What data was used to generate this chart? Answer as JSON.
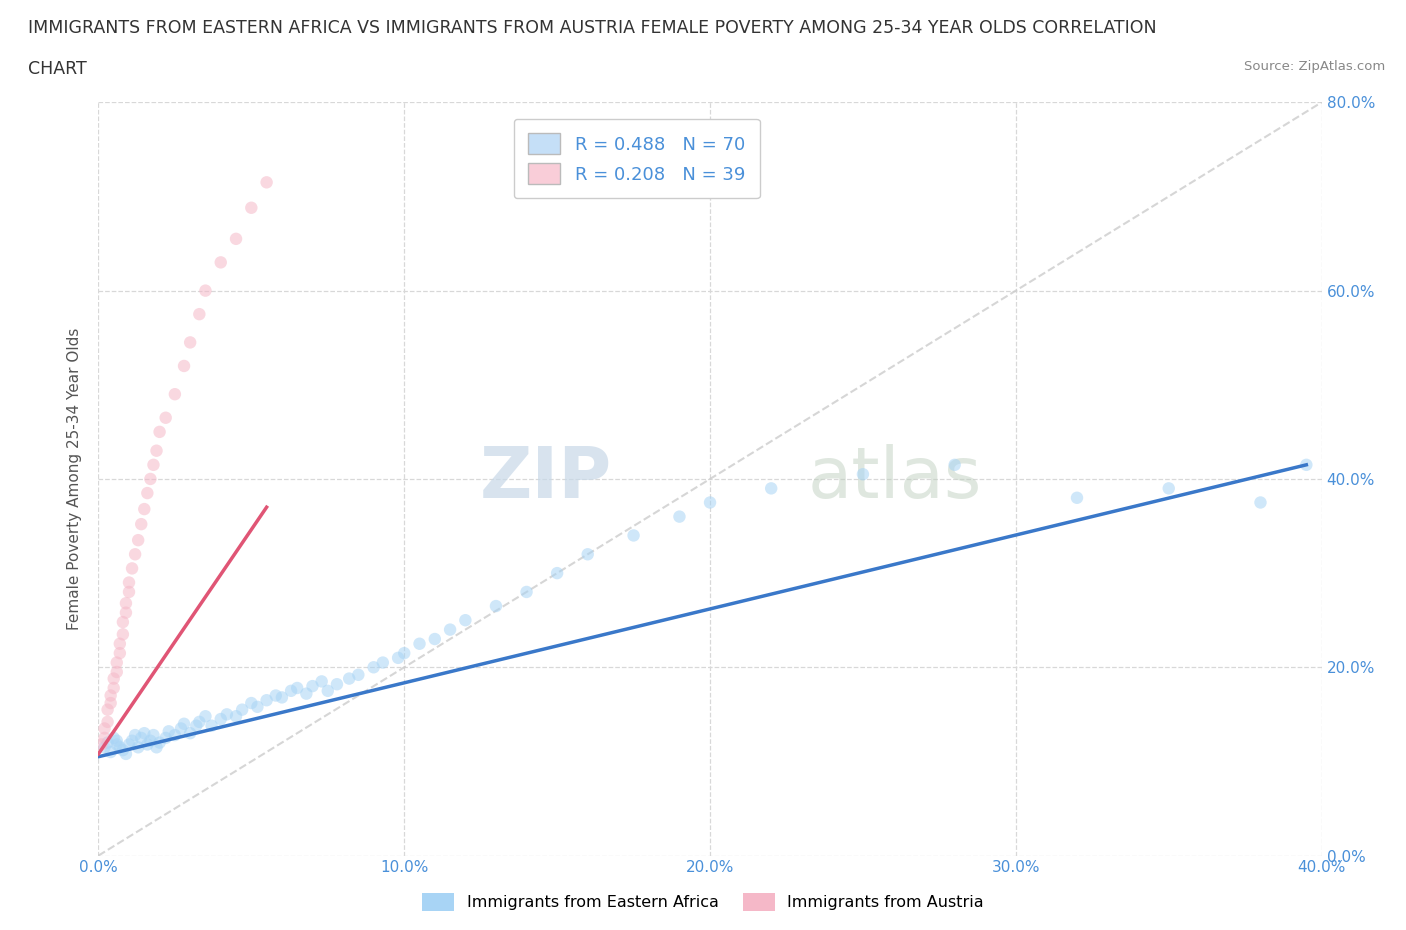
{
  "title_line1": "IMMIGRANTS FROM EASTERN AFRICA VS IMMIGRANTS FROM AUSTRIA FEMALE POVERTY AMONG 25-34 YEAR OLDS CORRELATION",
  "title_line2": "CHART",
  "source": "Source: ZipAtlas.com",
  "ylabel": "Female Poverty Among 25-34 Year Olds",
  "xlim": [
    0.0,
    0.4
  ],
  "ylim": [
    0.0,
    0.8
  ],
  "xticks": [
    0.0,
    0.1,
    0.2,
    0.3,
    0.4
  ],
  "yticks": [
    0.0,
    0.2,
    0.4,
    0.6,
    0.8
  ],
  "xtick_labels": [
    "0.0%",
    "10.0%",
    "20.0%",
    "30.0%",
    "40.0%"
  ],
  "ytick_labels": [
    "0.0%",
    "20.0%",
    "40.0%",
    "60.0%",
    "80.0%"
  ],
  "watermark_zip": "ZIP",
  "watermark_atlas": "atlas",
  "R_eastern": 0.488,
  "N_eastern": 70,
  "R_austria": 0.208,
  "N_austria": 39,
  "eastern_africa_color": "#a8d4f5",
  "austria_color": "#f5b8c8",
  "eastern_africa_line_color": "#3a78c9",
  "austria_line_color": "#e05575",
  "legend_blue_fill": "#c5dff7",
  "legend_pink_fill": "#f9cdd8",
  "background_color": "#ffffff",
  "grid_color": "#d8d8d8",
  "title_fontsize": 12.5,
  "axis_label_fontsize": 11,
  "tick_fontsize": 11,
  "marker_size": 80,
  "marker_alpha": 0.55,
  "blue_tick_color": "#4a90d9",
  "ref_line_color": "#cccccc",
  "ea_x": [
    0.002,
    0.003,
    0.004,
    0.005,
    0.006,
    0.006,
    0.007,
    0.008,
    0.009,
    0.01,
    0.011,
    0.012,
    0.013,
    0.014,
    0.015,
    0.016,
    0.017,
    0.018,
    0.019,
    0.02,
    0.022,
    0.023,
    0.025,
    0.027,
    0.028,
    0.03,
    0.032,
    0.033,
    0.035,
    0.037,
    0.04,
    0.042,
    0.045,
    0.047,
    0.05,
    0.052,
    0.055,
    0.058,
    0.06,
    0.063,
    0.065,
    0.068,
    0.07,
    0.073,
    0.075,
    0.078,
    0.082,
    0.085,
    0.09,
    0.093,
    0.098,
    0.1,
    0.105,
    0.11,
    0.115,
    0.12,
    0.13,
    0.14,
    0.15,
    0.16,
    0.175,
    0.19,
    0.2,
    0.22,
    0.25,
    0.28,
    0.32,
    0.35,
    0.38,
    0.395
  ],
  "ea_y": [
    0.115,
    0.12,
    0.11,
    0.125,
    0.118,
    0.122,
    0.115,
    0.112,
    0.108,
    0.118,
    0.122,
    0.128,
    0.115,
    0.125,
    0.13,
    0.118,
    0.122,
    0.128,
    0.115,
    0.12,
    0.125,
    0.132,
    0.128,
    0.135,
    0.14,
    0.13,
    0.138,
    0.142,
    0.148,
    0.138,
    0.145,
    0.15,
    0.148,
    0.155,
    0.162,
    0.158,
    0.165,
    0.17,
    0.168,
    0.175,
    0.178,
    0.172,
    0.18,
    0.185,
    0.175,
    0.182,
    0.188,
    0.192,
    0.2,
    0.205,
    0.21,
    0.215,
    0.225,
    0.23,
    0.24,
    0.25,
    0.265,
    0.28,
    0.3,
    0.32,
    0.34,
    0.36,
    0.375,
    0.39,
    0.405,
    0.415,
    0.38,
    0.39,
    0.375,
    0.415
  ],
  "at_x": [
    0.001,
    0.002,
    0.002,
    0.003,
    0.003,
    0.004,
    0.004,
    0.005,
    0.005,
    0.006,
    0.006,
    0.007,
    0.007,
    0.008,
    0.008,
    0.009,
    0.009,
    0.01,
    0.01,
    0.011,
    0.012,
    0.013,
    0.014,
    0.015,
    0.016,
    0.017,
    0.018,
    0.019,
    0.02,
    0.022,
    0.025,
    0.028,
    0.03,
    0.033,
    0.035,
    0.04,
    0.045,
    0.05,
    0.055
  ],
  "at_y": [
    0.118,
    0.125,
    0.135,
    0.142,
    0.155,
    0.162,
    0.17,
    0.178,
    0.188,
    0.195,
    0.205,
    0.215,
    0.225,
    0.235,
    0.248,
    0.258,
    0.268,
    0.28,
    0.29,
    0.305,
    0.32,
    0.335,
    0.352,
    0.368,
    0.385,
    0.4,
    0.415,
    0.43,
    0.45,
    0.465,
    0.49,
    0.52,
    0.545,
    0.575,
    0.6,
    0.63,
    0.655,
    0.688,
    0.715
  ],
  "ea_line_x0": 0.0,
  "ea_line_x1": 0.395,
  "ea_line_y0": 0.105,
  "ea_line_y1": 0.415,
  "at_line_x0": 0.0,
  "at_line_x1": 0.055,
  "at_line_y0": 0.108,
  "at_line_y1": 0.37
}
